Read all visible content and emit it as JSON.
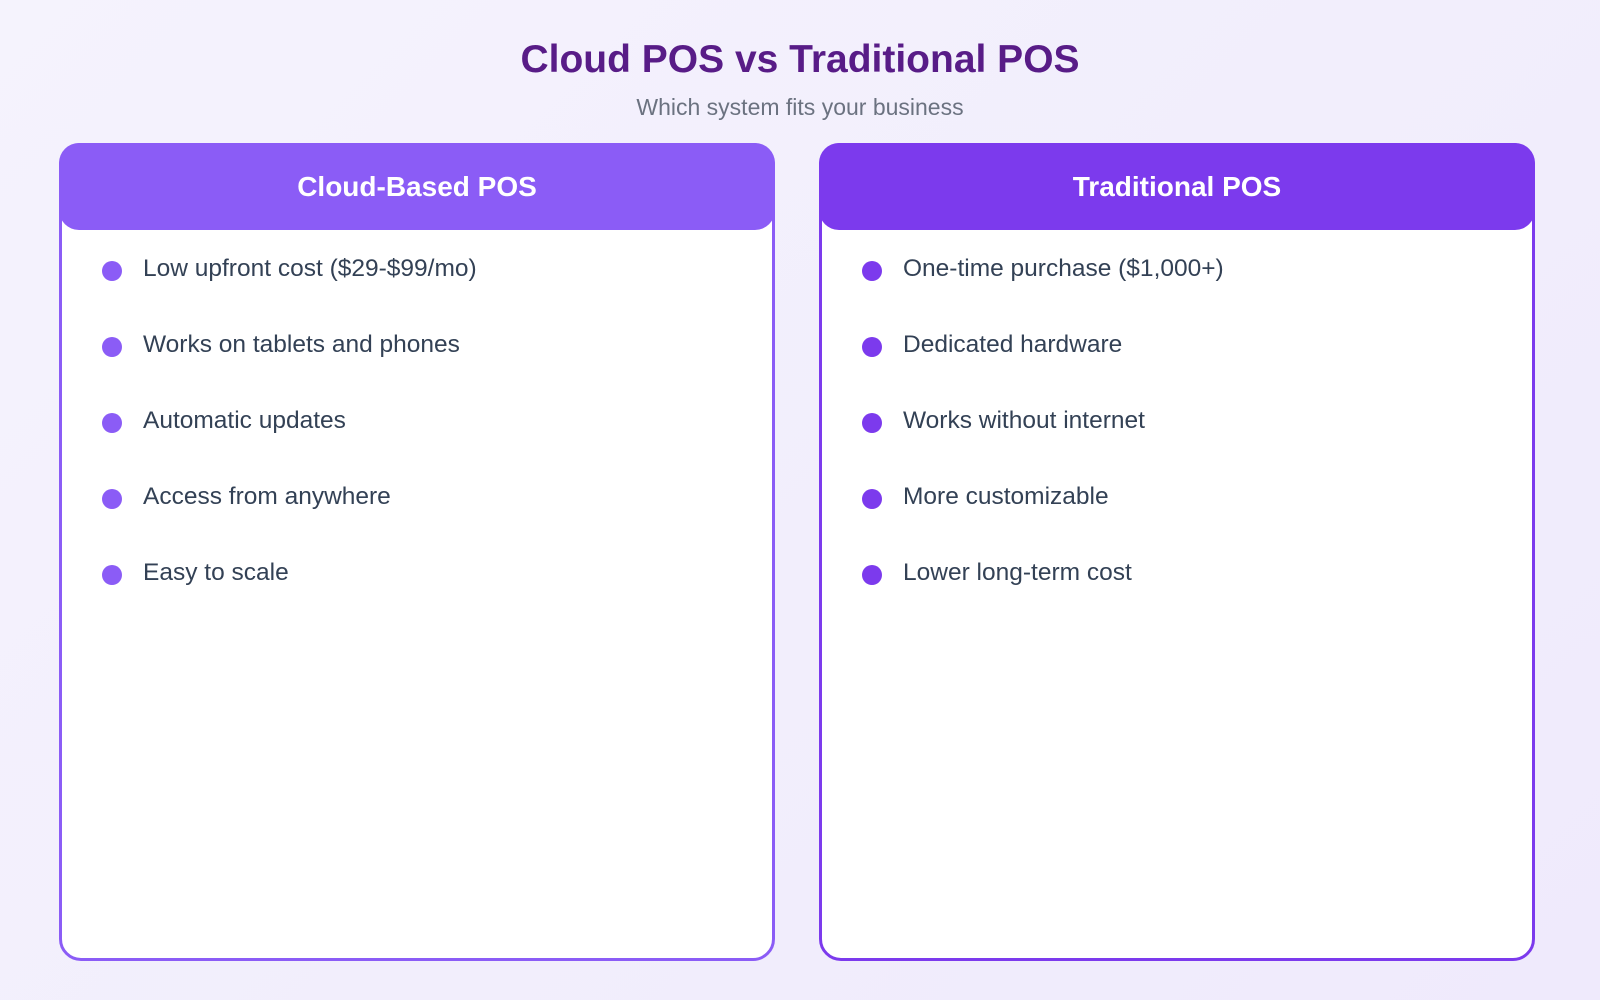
{
  "header": {
    "title": "Cloud POS vs Traditional POS",
    "subtitle": "Which system fits your business"
  },
  "colors": {
    "title": "#581c87",
    "cloud_accent": "#8b5cf6",
    "traditional_accent": "#7c3aed",
    "text": "#334155"
  },
  "cards": [
    {
      "title": "Cloud-Based POS",
      "items": [
        "Low upfront cost ($29-$99/mo)",
        "Works on tablets and phones",
        "Automatic updates",
        "Access from anywhere",
        "Easy to scale"
      ]
    },
    {
      "title": "Traditional POS",
      "items": [
        "One-time purchase ($1,000+)",
        "Dedicated hardware",
        "Works without internet",
        "More customizable",
        "Lower long-term cost"
      ]
    }
  ]
}
